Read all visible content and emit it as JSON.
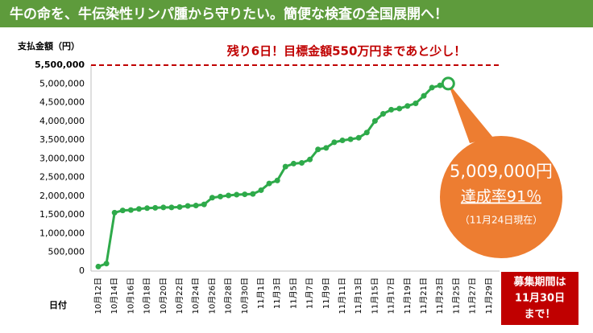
{
  "chart_data": {
    "type": "line",
    "title": "牛の命を、牛伝染性リンパ腫から守りたい。簡便な検査の全国展開へ！",
    "y_label": "支払金額（円）",
    "x_label": "日付",
    "categories": [
      "10月12日",
      null,
      "10月14日",
      null,
      "10月16日",
      null,
      "10月18日",
      null,
      "10月20日",
      null,
      "10月22日",
      null,
      "10月24日",
      null,
      "10月26日",
      null,
      "10月28日",
      null,
      "10月30日",
      null,
      "11月1日",
      null,
      "11月3日",
      null,
      "11月5日",
      null,
      "11月7日",
      null,
      "11月9日",
      null,
      "11月11日",
      null,
      "11月13日",
      null,
      "11月15日",
      null,
      "11月17日",
      null,
      "11月19日",
      null,
      "11月21日",
      null,
      "11月23日",
      null,
      "11月25日",
      null,
      "11月27日",
      null,
      "11月29日"
    ],
    "series": [
      {
        "name": "支払金額",
        "color": "#2eaa4a",
        "values": [
          120000,
          200000,
          1560000,
          1620000,
          1630000,
          1660000,
          1680000,
          1690000,
          1700000,
          1700000,
          1710000,
          1740000,
          1750000,
          1780000,
          1960000,
          1990000,
          2020000,
          2040000,
          2050000,
          2060000,
          2160000,
          2340000,
          2420000,
          2790000,
          2870000,
          2890000,
          2980000,
          3250000,
          3290000,
          3440000,
          3490000,
          3520000,
          3560000,
          3700000,
          4010000,
          4200000,
          4310000,
          4340000,
          4410000,
          4480000,
          4680000,
          4900000,
          4960000,
          5009000,
          null,
          null,
          null,
          null,
          null
        ]
      }
    ],
    "ylim": [
      0,
      5500000
    ],
    "yticks": [
      0,
      {
        "value": 500000,
        "label": "500,000"
      },
      {
        "value": 1000000,
        "label": "1,000,000"
      },
      {
        "value": 1500000,
        "label": "1,500,000"
      },
      {
        "value": 2000000,
        "label": "2,000,000"
      },
      {
        "value": 2500000,
        "label": "2,500,000"
      },
      {
        "value": 3000000,
        "label": "3,000,000"
      },
      {
        "value": 3500000,
        "label": "3,500,000"
      },
      {
        "value": 4000000,
        "label": "4,000,000"
      },
      {
        "value": 4500000,
        "label": "4,500,000"
      },
      {
        "value": 5000000,
        "label": "5,000,000"
      }
    ],
    "target": {
      "value": 5500000,
      "label": "5,500,000",
      "color": "#c00000"
    },
    "target_note": "残り6日！目標金額550万円まであと少し！",
    "callout": {
      "amount": "5,009,000円",
      "rate": "達成率91％",
      "date": "（11月24日現在）",
      "color": "#ed7d31"
    },
    "deadline": [
      "募集期間は",
      "11月30日",
      "まで！"
    ]
  }
}
